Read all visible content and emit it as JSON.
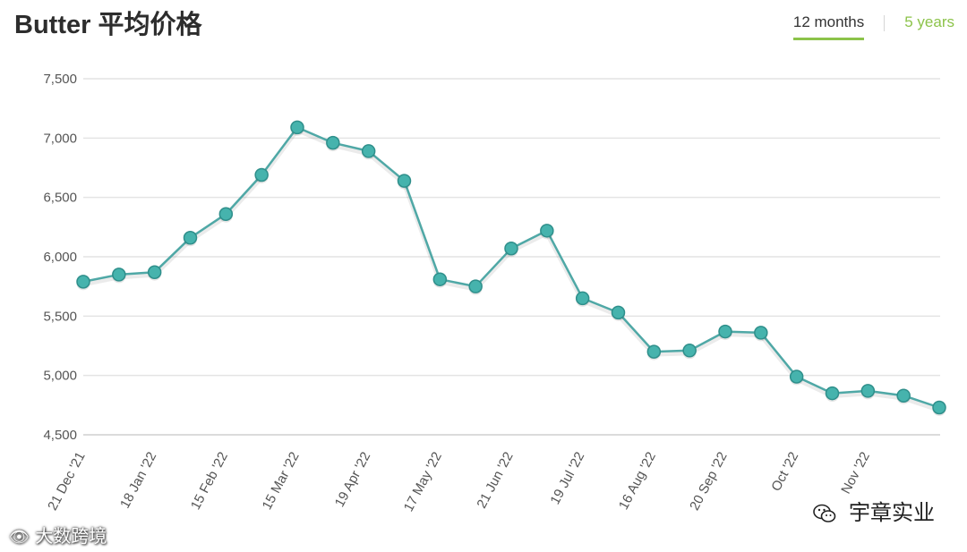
{
  "header": {
    "title": "Butter 平均价格",
    "tabs": [
      {
        "label": "12 months",
        "active": true
      },
      {
        "label": "5 years",
        "active": false
      }
    ]
  },
  "colors": {
    "line": "#4fa8a6",
    "marker_fill": "#46b3ad",
    "marker_stroke": "#2f8f8b",
    "grid": "#e4e4e4",
    "tab_accent": "#8cc34a"
  },
  "watermarks": {
    "left": "大数跨境",
    "right": "宇章实业",
    "right_icon": "wechat-icon"
  },
  "chart_data": {
    "type": "line",
    "title": "Butter 平均价格",
    "xlabel": "",
    "ylabel": "",
    "ylim": [
      4500,
      7500
    ],
    "yticks": [
      4500,
      5000,
      5500,
      6000,
      6500,
      7000,
      7500
    ],
    "ytick_labels": [
      "4,500",
      "5,000",
      "5,500",
      "6,000",
      "6,500",
      "7,000",
      "7,500"
    ],
    "grid": true,
    "legend": "none",
    "xtick_labels": [
      {
        "index": 0,
        "label": "21 Dec '21"
      },
      {
        "index": 2,
        "label": "18 Jan '22"
      },
      {
        "index": 4,
        "label": "15 Feb '22"
      },
      {
        "index": 6,
        "label": "15 Mar '22"
      },
      {
        "index": 8,
        "label": "19 Apr '22"
      },
      {
        "index": 10,
        "label": "17 May '22"
      },
      {
        "index": 12,
        "label": "21 Jun '22"
      },
      {
        "index": 14,
        "label": "19 Jul '22"
      },
      {
        "index": 16,
        "label": "16 Aug '22"
      },
      {
        "index": 18,
        "label": "20 Sep '22"
      },
      {
        "index": 20,
        "label": "Oct '22"
      },
      {
        "index": 22,
        "label": "Nov '22"
      }
    ],
    "series": [
      {
        "values": [
          5790,
          5850,
          5870,
          6160,
          6360,
          6690,
          7090,
          6960,
          6890,
          6640,
          5810,
          5750,
          6070,
          6220,
          5650,
          5530,
          5200,
          5210,
          5370,
          5360,
          4990,
          4850,
          4870,
          4830,
          4730
        ]
      }
    ]
  }
}
